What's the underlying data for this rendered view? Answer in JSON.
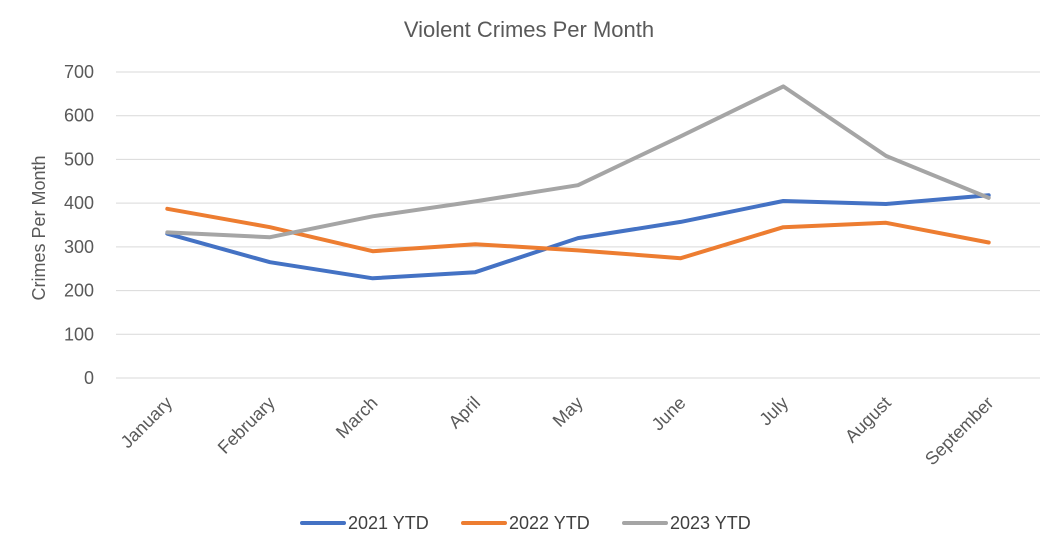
{
  "chart_data": {
    "type": "line",
    "title": "Violent Crimes Per Month",
    "xlabel": "",
    "ylabel": "Crimes Per Month",
    "categories": [
      "January",
      "February",
      "March",
      "April",
      "May",
      "June",
      "July",
      "August",
      "September"
    ],
    "ylim": [
      0,
      700
    ],
    "yticks": [
      0,
      100,
      200,
      300,
      400,
      500,
      600,
      700
    ],
    "grid": true,
    "legend_position": "bottom",
    "series": [
      {
        "name": "2021 YTD",
        "color": "#4472C4",
        "values": [
          330,
          265,
          228,
          242,
          320,
          357,
          405,
          398,
          418
        ]
      },
      {
        "name": "2022 YTD",
        "color": "#ED7D31",
        "values": [
          387,
          345,
          290,
          306,
          292,
          274,
          345,
          355,
          310
        ]
      },
      {
        "name": "2023 YTD",
        "color": "#A5A5A5",
        "values": [
          333,
          322,
          370,
          404,
          441,
          553,
          667,
          508,
          412
        ]
      }
    ]
  }
}
